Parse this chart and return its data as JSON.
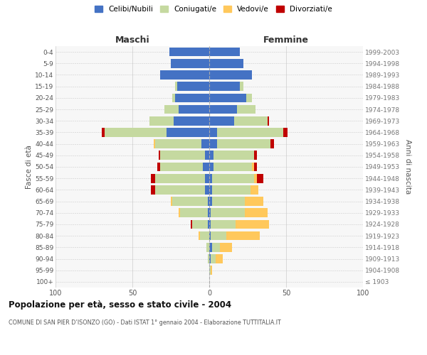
{
  "age_groups": [
    "100+",
    "95-99",
    "90-94",
    "85-89",
    "80-84",
    "75-79",
    "70-74",
    "65-69",
    "60-64",
    "55-59",
    "50-54",
    "45-49",
    "40-44",
    "35-39",
    "30-34",
    "25-29",
    "20-24",
    "15-19",
    "10-14",
    "5-9",
    "0-4"
  ],
  "birth_years": [
    "≤ 1903",
    "1904-1908",
    "1909-1913",
    "1914-1918",
    "1919-1923",
    "1924-1928",
    "1929-1933",
    "1934-1938",
    "1939-1943",
    "1944-1948",
    "1949-1953",
    "1954-1958",
    "1959-1963",
    "1964-1968",
    "1969-1973",
    "1974-1978",
    "1979-1983",
    "1984-1988",
    "1989-1993",
    "1994-1998",
    "1999-2003"
  ],
  "colors": {
    "celibi": "#4472c4",
    "coniugati": "#c5d9a0",
    "vedovi": "#ffc85c",
    "divorziati": "#c00000"
  },
  "maschi": {
    "celibi": [
      0,
      0,
      0,
      0,
      0,
      1,
      1,
      1,
      3,
      3,
      4,
      3,
      5,
      28,
      23,
      20,
      22,
      21,
      32,
      25,
      26
    ],
    "coniugati": [
      0,
      0,
      1,
      2,
      6,
      10,
      18,
      23,
      32,
      32,
      28,
      29,
      30,
      40,
      16,
      9,
      2,
      1,
      0,
      0,
      0
    ],
    "vedovi": [
      0,
      0,
      0,
      0,
      1,
      0,
      1,
      1,
      0,
      0,
      0,
      0,
      1,
      0,
      0,
      0,
      0,
      0,
      0,
      0,
      0
    ],
    "divorziati": [
      0,
      0,
      0,
      0,
      0,
      1,
      0,
      0,
      3,
      3,
      2,
      1,
      0,
      2,
      0,
      0,
      0,
      0,
      0,
      0,
      0
    ]
  },
  "femmine": {
    "celibi": [
      0,
      0,
      1,
      2,
      1,
      1,
      1,
      2,
      2,
      2,
      3,
      3,
      5,
      5,
      16,
      18,
      24,
      20,
      28,
      22,
      20
    ],
    "coniugati": [
      0,
      1,
      3,
      5,
      10,
      16,
      22,
      21,
      25,
      27,
      25,
      26,
      35,
      43,
      22,
      12,
      4,
      2,
      0,
      0,
      0
    ],
    "vedovi": [
      0,
      1,
      5,
      8,
      22,
      22,
      15,
      12,
      5,
      2,
      1,
      0,
      0,
      0,
      0,
      0,
      0,
      0,
      0,
      0,
      0
    ],
    "divorziati": [
      0,
      0,
      0,
      0,
      0,
      0,
      0,
      0,
      0,
      4,
      2,
      2,
      2,
      3,
      1,
      0,
      0,
      0,
      0,
      0,
      0
    ]
  },
  "title": "Popolazione per età, sesso e stato civile - 2004",
  "subtitle": "COMUNE DI SAN PIER D’ISONZO (GO) - Dati ISTAT 1° gennaio 2004 - Elaborazione TUTTITALIA.IT",
  "xlabel_maschi": "Maschi",
  "xlabel_femmine": "Femmine",
  "ylabel_left": "Fasce di età",
  "ylabel_right": "Anni di nascita",
  "xlim": 100,
  "legend_labels": [
    "Celibi/Nubili",
    "Coniugati/e",
    "Vedovi/e",
    "Divorziati/e"
  ],
  "background_color": "#ffffff",
  "grid_color": "#cccccc",
  "ax_bg": "#f7f7f7"
}
